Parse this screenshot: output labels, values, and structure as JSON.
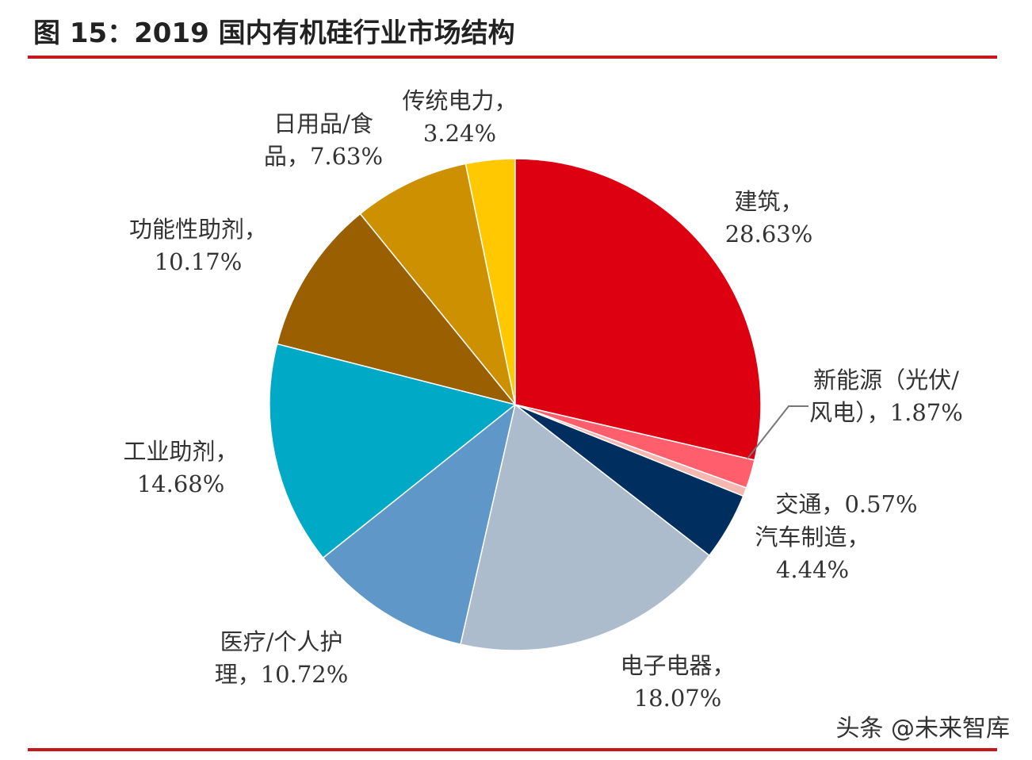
{
  "chart_data": {
    "type": "pie",
    "title": "图 15：2019 国内有机硅行业市场结构",
    "categories": [
      "建筑，",
      "新能源（光伏/风电），",
      "交通，",
      "汽车制造，",
      "电子电器，",
      "医疗/个人护理，",
      "工业助剂，",
      "功能性助剂，",
      "日用品/食品，",
      "传统电力，"
    ],
    "values": [
      28.63,
      1.87,
      0.57,
      4.44,
      18.07,
      10.72,
      14.68,
      10.17,
      7.63,
      3.24
    ],
    "value_labels": [
      "28.63%",
      "1.87%",
      "0.57%",
      "4.44%",
      "18.07%",
      "10.72%",
      "14.68%",
      "10.17%",
      "7.63%",
      "3.24%"
    ],
    "colors": [
      "#dd0010",
      "#ff5f6d",
      "#f5b7b0",
      "#002f5f",
      "#adbccd",
      "#6097c9",
      "#00aac7",
      "#9a5f00",
      "#cd9000",
      "#ffc800"
    ],
    "watermark": "头条 @未来智库"
  }
}
